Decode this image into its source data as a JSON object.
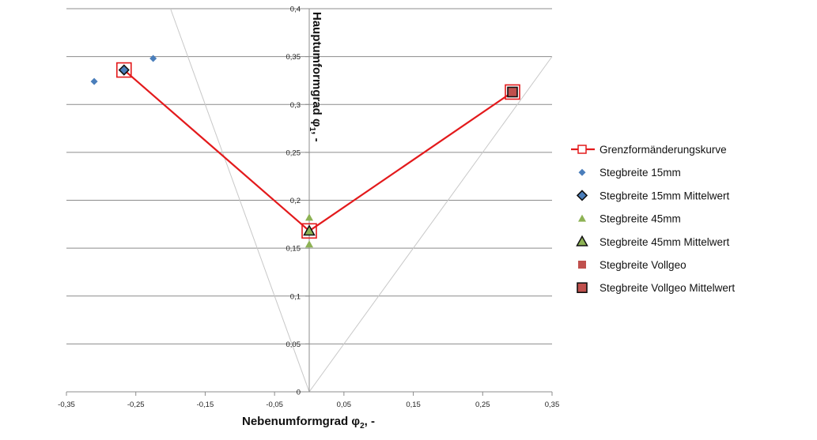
{
  "chart_data": {
    "type": "scatter",
    "xlabel_main": "Nebenumformgrad φ",
    "xlabel_sub": "2",
    "xlabel_tail": ", -",
    "ylabel_main": "Hauptumformgrad φ",
    "ylabel_sub": "1",
    "ylabel_tail": ", -",
    "xlim": [
      -0.35,
      0.35
    ],
    "ylim": [
      0,
      0.4
    ],
    "grid": true,
    "legend_position": "right",
    "x_ticks": [
      -0.35,
      -0.25,
      -0.15,
      -0.05,
      0.05,
      0.15,
      0.25,
      0.35
    ],
    "x_tick_labels": [
      "-0,35",
      "-0,25",
      "-0,15",
      "-0,05",
      "0,05",
      "0,15",
      "0,25",
      "0,35"
    ],
    "y_ticks": [
      0,
      0.05,
      0.1,
      0.15,
      0.2,
      0.25,
      0.3,
      0.35,
      0.4
    ],
    "y_tick_labels": [
      "0",
      "0,05",
      "0,1",
      "0,15",
      "0,2",
      "0,25",
      "0,3",
      "0,35",
      "0,4"
    ],
    "reference_lines": [
      {
        "x": [
          0,
          -0.2
        ],
        "y": [
          0,
          0.4
        ]
      },
      {
        "x": [
          0,
          0.35
        ],
        "y": [
          0,
          0.35
        ]
      }
    ],
    "series": [
      {
        "name": "Grenzformänderungskurve",
        "marker": "square-open-line",
        "color": "#e31a1c",
        "x": [
          -0.267,
          0.0,
          0.293
        ],
        "y": [
          0.336,
          0.168,
          0.313
        ]
      },
      {
        "name": "Stegbreite 15mm",
        "marker": "diamond",
        "color": "#4a7ebb",
        "x": [
          -0.31,
          -0.225
        ],
        "y": [
          0.324,
          0.348
        ]
      },
      {
        "name": "Stegbreite 15mm Mittelwert",
        "marker": "diamond-outlined",
        "color": "#4a7ebb",
        "x": [
          -0.267
        ],
        "y": [
          0.336
        ]
      },
      {
        "name": "Stegbreite 45mm",
        "marker": "triangle",
        "color": "#8db254",
        "x": [
          0.0,
          0.0
        ],
        "y": [
          0.182,
          0.154
        ]
      },
      {
        "name": "Stegbreite 45mm Mittelwert",
        "marker": "triangle-outlined",
        "color": "#8db254",
        "x": [
          0.0
        ],
        "y": [
          0.168
        ]
      },
      {
        "name": "Stegbreite Vollgeo",
        "marker": "square",
        "color": "#c0504d",
        "x": [
          0.293
        ],
        "y": [
          0.313
        ]
      },
      {
        "name": "Stegbreite Vollgeo Mittelwert",
        "marker": "square-outlined",
        "color": "#c0504d",
        "x": [
          0.293
        ],
        "y": [
          0.313
        ]
      }
    ]
  }
}
